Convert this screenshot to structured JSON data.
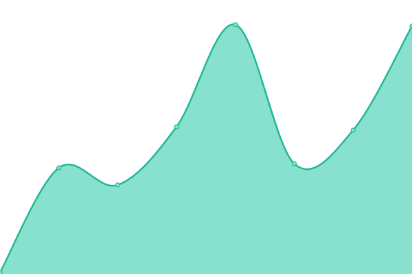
{
  "chart_data": {
    "type": "area",
    "categories": [
      null,
      null,
      null,
      null,
      null,
      null,
      null,
      null
    ],
    "values": [
      2,
      155,
      130,
      215,
      364,
      161,
      210,
      362
    ],
    "ylim": [
      0,
      400
    ],
    "color": "#1fb894",
    "fill": "#88e0cf"
  }
}
